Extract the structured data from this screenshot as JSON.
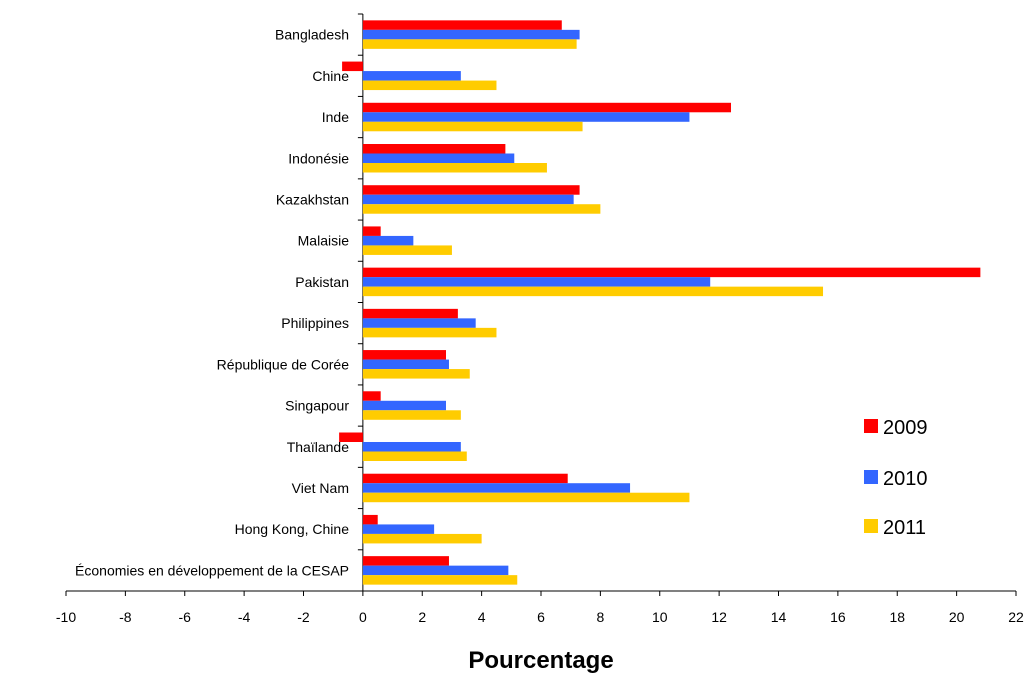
{
  "chart_data": {
    "type": "bar",
    "orientation": "horizontal",
    "categories": [
      "Bangladesh",
      "Chine",
      "Inde",
      "Indonésie",
      "Kazakhstan",
      "Malaisie",
      "Pakistan",
      "Philippines",
      "République de Corée",
      "Singapour",
      "Thaïlande",
      "Viet Nam",
      "Hong Kong, Chine",
      "Économies en développement de la CESAP"
    ],
    "series": [
      {
        "name": "2009",
        "color": "#ff0000",
        "values": [
          6.7,
          -0.7,
          12.4,
          4.8,
          7.3,
          0.6,
          20.8,
          3.2,
          2.8,
          0.6,
          -0.8,
          6.9,
          0.5,
          2.9
        ]
      },
      {
        "name": "2010",
        "color": "#3366ff",
        "values": [
          7.3,
          3.3,
          11.0,
          5.1,
          7.1,
          1.7,
          11.7,
          3.8,
          2.9,
          2.8,
          3.3,
          9.0,
          2.4,
          4.9
        ]
      },
      {
        "name": "2011",
        "color": "#ffcc00",
        "values": [
          7.2,
          4.5,
          7.4,
          6.2,
          8.0,
          3.0,
          15.5,
          4.5,
          3.6,
          3.3,
          3.5,
          11.0,
          4.0,
          5.2
        ]
      }
    ],
    "xlabel": "Pourcentage",
    "ylabel": "",
    "xlim": [
      -10,
      22
    ],
    "xticks": [
      "-10",
      "-8",
      "-6",
      "-4",
      "-2",
      "0",
      "2",
      "4",
      "6",
      "8",
      "10",
      "12",
      "14",
      "16",
      "18",
      "20",
      "22"
    ],
    "grid": false,
    "legend_position": "right"
  }
}
